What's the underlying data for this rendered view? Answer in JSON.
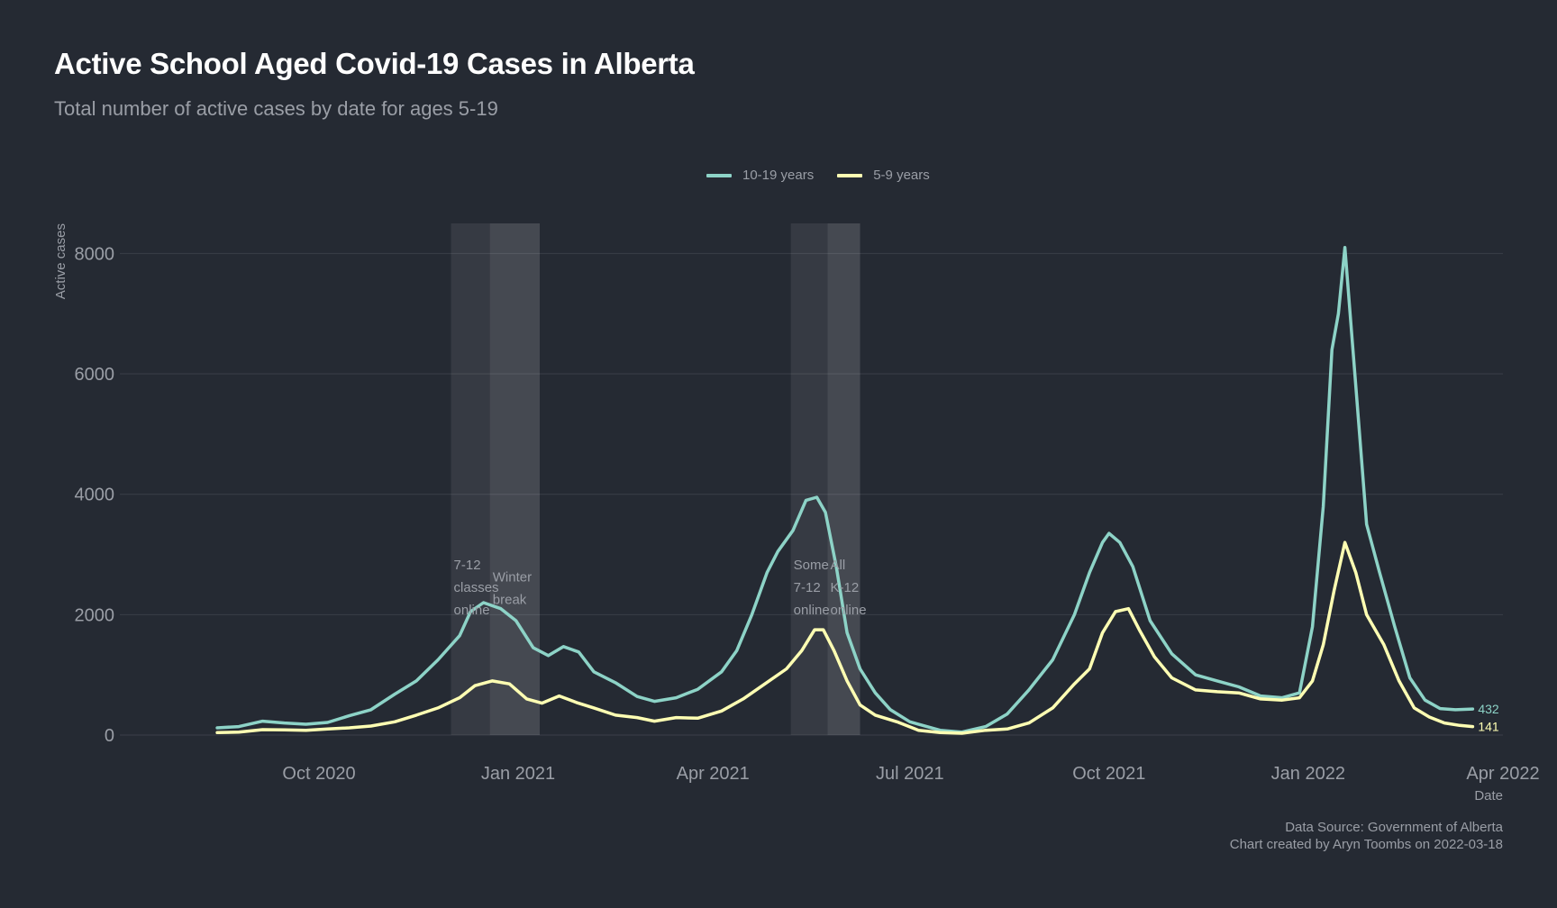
{
  "title": "Active School Aged Covid-19 Cases in Alberta",
  "subtitle": "Total number of active cases by date for ages 5-19",
  "caption": {
    "line1": "Data Source: Government of Alberta",
    "line2": "Chart created by Aryn Toombs on 2022-03-18"
  },
  "colors": {
    "background": "#252a33",
    "grid": "#3a3f48",
    "text": "#9a9ea6",
    "series_10_19": "#8dd3c7",
    "series_5_9": "#ffffb3",
    "shade": "#ffffff"
  },
  "chart_data": {
    "type": "line",
    "xlabel": "Date",
    "ylabel": "Active cases",
    "xlim": [
      "2020-07-01",
      "2022-04-01"
    ],
    "ylim": [
      0,
      8500
    ],
    "x_ticks": [
      {
        "date": "2020-10-01",
        "label": "Oct 2020"
      },
      {
        "date": "2021-01-01",
        "label": "Jan 2021"
      },
      {
        "date": "2021-04-01",
        "label": "Apr 2021"
      },
      {
        "date": "2021-07-01",
        "label": "Jul 2021"
      },
      {
        "date": "2021-10-01",
        "label": "Oct 2021"
      },
      {
        "date": "2022-01-01",
        "label": "Jan 2022"
      },
      {
        "date": "2022-04-01",
        "label": "Apr 2022"
      }
    ],
    "y_ticks": [
      0,
      2000,
      4000,
      6000,
      8000
    ],
    "grid": true,
    "legend_position": "top",
    "series": [
      {
        "name": "10-19 years",
        "end_label": "432",
        "points": [
          [
            "2020-08-15",
            120
          ],
          [
            "2020-08-25",
            140
          ],
          [
            "2020-09-05",
            230
          ],
          [
            "2020-09-15",
            200
          ],
          [
            "2020-09-25",
            180
          ],
          [
            "2020-10-05",
            210
          ],
          [
            "2020-10-15",
            320
          ],
          [
            "2020-10-25",
            420
          ],
          [
            "2020-11-05",
            680
          ],
          [
            "2020-11-15",
            900
          ],
          [
            "2020-11-25",
            1250
          ],
          [
            "2020-12-05",
            1650
          ],
          [
            "2020-12-10",
            2050
          ],
          [
            "2020-12-16",
            2200
          ],
          [
            "2020-12-24",
            2100
          ],
          [
            "2020-12-31",
            1900
          ],
          [
            "2021-01-08",
            1450
          ],
          [
            "2021-01-15",
            1320
          ],
          [
            "2021-01-22",
            1470
          ],
          [
            "2021-01-29",
            1380
          ],
          [
            "2021-02-05",
            1050
          ],
          [
            "2021-02-15",
            870
          ],
          [
            "2021-02-25",
            640
          ],
          [
            "2021-03-05",
            560
          ],
          [
            "2021-03-15",
            620
          ],
          [
            "2021-03-25",
            760
          ],
          [
            "2021-04-05",
            1050
          ],
          [
            "2021-04-12",
            1400
          ],
          [
            "2021-04-19",
            2000
          ],
          [
            "2021-04-26",
            2700
          ],
          [
            "2021-05-01",
            3050
          ],
          [
            "2021-05-08",
            3400
          ],
          [
            "2021-05-14",
            3900
          ],
          [
            "2021-05-19",
            3950
          ],
          [
            "2021-05-23",
            3700
          ],
          [
            "2021-05-28",
            2800
          ],
          [
            "2021-06-02",
            1700
          ],
          [
            "2021-06-08",
            1100
          ],
          [
            "2021-06-15",
            700
          ],
          [
            "2021-06-22",
            420
          ],
          [
            "2021-07-01",
            220
          ],
          [
            "2021-07-15",
            80
          ],
          [
            "2021-07-25",
            50
          ],
          [
            "2021-08-05",
            140
          ],
          [
            "2021-08-15",
            350
          ],
          [
            "2021-08-25",
            750
          ],
          [
            "2021-09-05",
            1250
          ],
          [
            "2021-09-15",
            2000
          ],
          [
            "2021-09-22",
            2700
          ],
          [
            "2021-09-28",
            3200
          ],
          [
            "2021-10-01",
            3350
          ],
          [
            "2021-10-06",
            3200
          ],
          [
            "2021-10-12",
            2800
          ],
          [
            "2021-10-20",
            1900
          ],
          [
            "2021-10-30",
            1350
          ],
          [
            "2021-11-10",
            1000
          ],
          [
            "2021-11-20",
            900
          ],
          [
            "2021-11-30",
            800
          ],
          [
            "2021-12-10",
            650
          ],
          [
            "2021-12-20",
            620
          ],
          [
            "2021-12-28",
            700
          ],
          [
            "2022-01-03",
            1800
          ],
          [
            "2022-01-08",
            3800
          ],
          [
            "2022-01-12",
            6400
          ],
          [
            "2022-01-15",
            7000
          ],
          [
            "2022-01-18",
            8100
          ],
          [
            "2022-01-23",
            5800
          ],
          [
            "2022-01-28",
            3500
          ],
          [
            "2022-02-03",
            2700
          ],
          [
            "2022-02-10",
            1800
          ],
          [
            "2022-02-17",
            950
          ],
          [
            "2022-02-24",
            580
          ],
          [
            "2022-03-03",
            440
          ],
          [
            "2022-03-10",
            420
          ],
          [
            "2022-03-18",
            432
          ]
        ]
      },
      {
        "name": "5-9 years",
        "end_label": "141",
        "points": [
          [
            "2020-08-15",
            40
          ],
          [
            "2020-08-25",
            50
          ],
          [
            "2020-09-05",
            90
          ],
          [
            "2020-09-15",
            85
          ],
          [
            "2020-09-25",
            80
          ],
          [
            "2020-10-05",
            100
          ],
          [
            "2020-10-15",
            120
          ],
          [
            "2020-10-25",
            150
          ],
          [
            "2020-11-05",
            220
          ],
          [
            "2020-11-15",
            330
          ],
          [
            "2020-11-25",
            450
          ],
          [
            "2020-12-05",
            620
          ],
          [
            "2020-12-12",
            820
          ],
          [
            "2020-12-20",
            900
          ],
          [
            "2020-12-28",
            850
          ],
          [
            "2021-01-05",
            600
          ],
          [
            "2021-01-12",
            530
          ],
          [
            "2021-01-20",
            650
          ],
          [
            "2021-01-28",
            540
          ],
          [
            "2021-02-05",
            450
          ],
          [
            "2021-02-15",
            330
          ],
          [
            "2021-02-25",
            290
          ],
          [
            "2021-03-05",
            230
          ],
          [
            "2021-03-15",
            290
          ],
          [
            "2021-03-25",
            280
          ],
          [
            "2021-04-05",
            400
          ],
          [
            "2021-04-15",
            600
          ],
          [
            "2021-04-25",
            850
          ],
          [
            "2021-05-05",
            1100
          ],
          [
            "2021-05-12",
            1400
          ],
          [
            "2021-05-18",
            1750
          ],
          [
            "2021-05-22",
            1750
          ],
          [
            "2021-05-27",
            1400
          ],
          [
            "2021-06-02",
            900
          ],
          [
            "2021-06-08",
            500
          ],
          [
            "2021-06-15",
            330
          ],
          [
            "2021-06-25",
            220
          ],
          [
            "2021-07-05",
            80
          ],
          [
            "2021-07-15",
            40
          ],
          [
            "2021-07-25",
            30
          ],
          [
            "2021-08-05",
            80
          ],
          [
            "2021-08-15",
            100
          ],
          [
            "2021-08-25",
            200
          ],
          [
            "2021-09-05",
            450
          ],
          [
            "2021-09-15",
            850
          ],
          [
            "2021-09-22",
            1100
          ],
          [
            "2021-09-28",
            1700
          ],
          [
            "2021-10-04",
            2050
          ],
          [
            "2021-10-10",
            2100
          ],
          [
            "2021-10-15",
            1750
          ],
          [
            "2021-10-22",
            1300
          ],
          [
            "2021-10-30",
            950
          ],
          [
            "2021-11-10",
            750
          ],
          [
            "2021-11-20",
            720
          ],
          [
            "2021-11-30",
            700
          ],
          [
            "2021-12-10",
            600
          ],
          [
            "2021-12-20",
            580
          ],
          [
            "2021-12-28",
            620
          ],
          [
            "2022-01-03",
            900
          ],
          [
            "2022-01-08",
            1500
          ],
          [
            "2022-01-13",
            2400
          ],
          [
            "2022-01-18",
            3200
          ],
          [
            "2022-01-23",
            2700
          ],
          [
            "2022-01-28",
            2000
          ],
          [
            "2022-02-05",
            1500
          ],
          [
            "2022-02-12",
            900
          ],
          [
            "2022-02-19",
            450
          ],
          [
            "2022-02-26",
            300
          ],
          [
            "2022-03-05",
            200
          ],
          [
            "2022-03-12",
            160
          ],
          [
            "2022-03-18",
            141
          ]
        ]
      }
    ],
    "annotations": [
      {
        "start": "2020-12-01",
        "end": "2021-01-11",
        "label": [
          "7-12",
          "classes",
          "online"
        ],
        "label_value": 2900
      },
      {
        "start": "2020-12-19",
        "end": "2021-01-11",
        "label": [
          "Winter",
          "break"
        ],
        "label_value": 2700
      },
      {
        "start": "2021-05-07",
        "end": "2021-06-08",
        "label": [
          "Some",
          "7-12",
          "online"
        ],
        "label_value": 2900
      },
      {
        "start": "2021-05-24",
        "end": "2021-06-08",
        "label": [
          "All",
          "K-12",
          "online"
        ],
        "label_value": 2900
      }
    ]
  }
}
